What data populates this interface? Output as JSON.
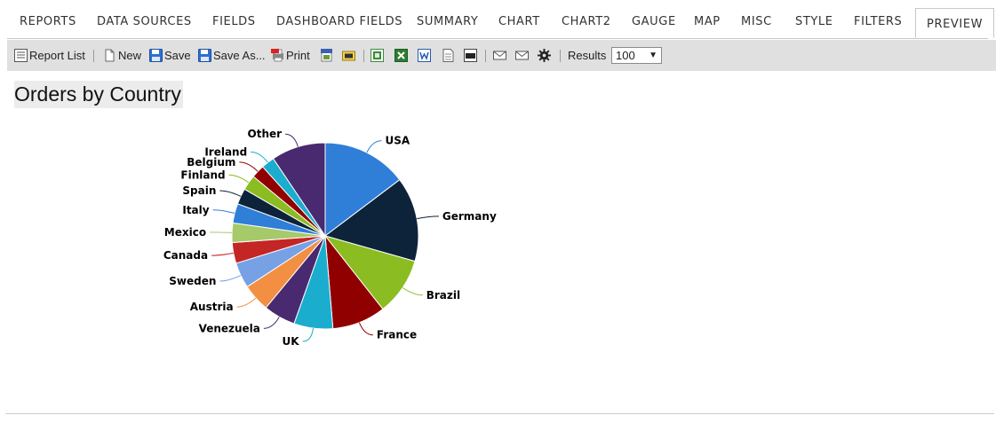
{
  "tabs": [
    {
      "label": "REPORTS",
      "active": false
    },
    {
      "label": "DATA SOURCES",
      "active": false
    },
    {
      "label": "FIELDS",
      "active": false
    },
    {
      "label": "DASHBOARD FIELDS",
      "active": false
    },
    {
      "label": "SUMMARY",
      "active": false
    },
    {
      "label": "CHART",
      "active": false
    },
    {
      "label": "CHART2",
      "active": false
    },
    {
      "label": "GAUGE",
      "active": false
    },
    {
      "label": "MAP",
      "active": false
    },
    {
      "label": "MISC",
      "active": false
    },
    {
      "label": "STYLE",
      "active": false
    },
    {
      "label": "FILTERS",
      "active": false
    },
    {
      "label": "PREVIEW",
      "active": true
    }
  ],
  "toolbar": {
    "report_list_label": "Report List",
    "new_label": "New",
    "save_label": "Save",
    "save_as_label": "Save As...",
    "print_label": "Print",
    "results_label": "Results",
    "results_value": "100",
    "icons": [
      "report-list-icon",
      "new-document-icon",
      "save-icon",
      "save-as-icon",
      "pdf-print-icon",
      "html-export-icon",
      "sql-icon",
      "excel-export-icon",
      "excel-icon",
      "word-icon",
      "text-export-icon",
      "csv-export-icon",
      "email-icon",
      "email-icon-2",
      "settings-gear-icon"
    ]
  },
  "report": {
    "title": "Orders by Country"
  },
  "chart_data": {
    "type": "pie",
    "title": "Orders by Country",
    "categories": [
      "USA",
      "Germany",
      "Brazil",
      "France",
      "UK",
      "Venezuela",
      "Austria",
      "Sweden",
      "Canada",
      "Mexico",
      "Italy",
      "Spain",
      "Finland",
      "Belgium",
      "Ireland",
      "Other"
    ],
    "values": [
      122,
      122,
      83,
      77,
      56,
      46,
      40,
      37,
      30,
      28,
      28,
      23,
      22,
      19,
      19,
      78
    ],
    "colors": [
      "#2f7ed8",
      "#0d233a",
      "#8bbc21",
      "#910000",
      "#1aadce",
      "#492970",
      "#f28f43",
      "#77a1e5",
      "#c42525",
      "#a6c96a",
      "#2f7ed8",
      "#0d233a",
      "#8bbc21",
      "#910000",
      "#1aadce",
      "#492970"
    ],
    "start_angle_deg": 0,
    "direction": "clockwise",
    "legend": "none"
  }
}
